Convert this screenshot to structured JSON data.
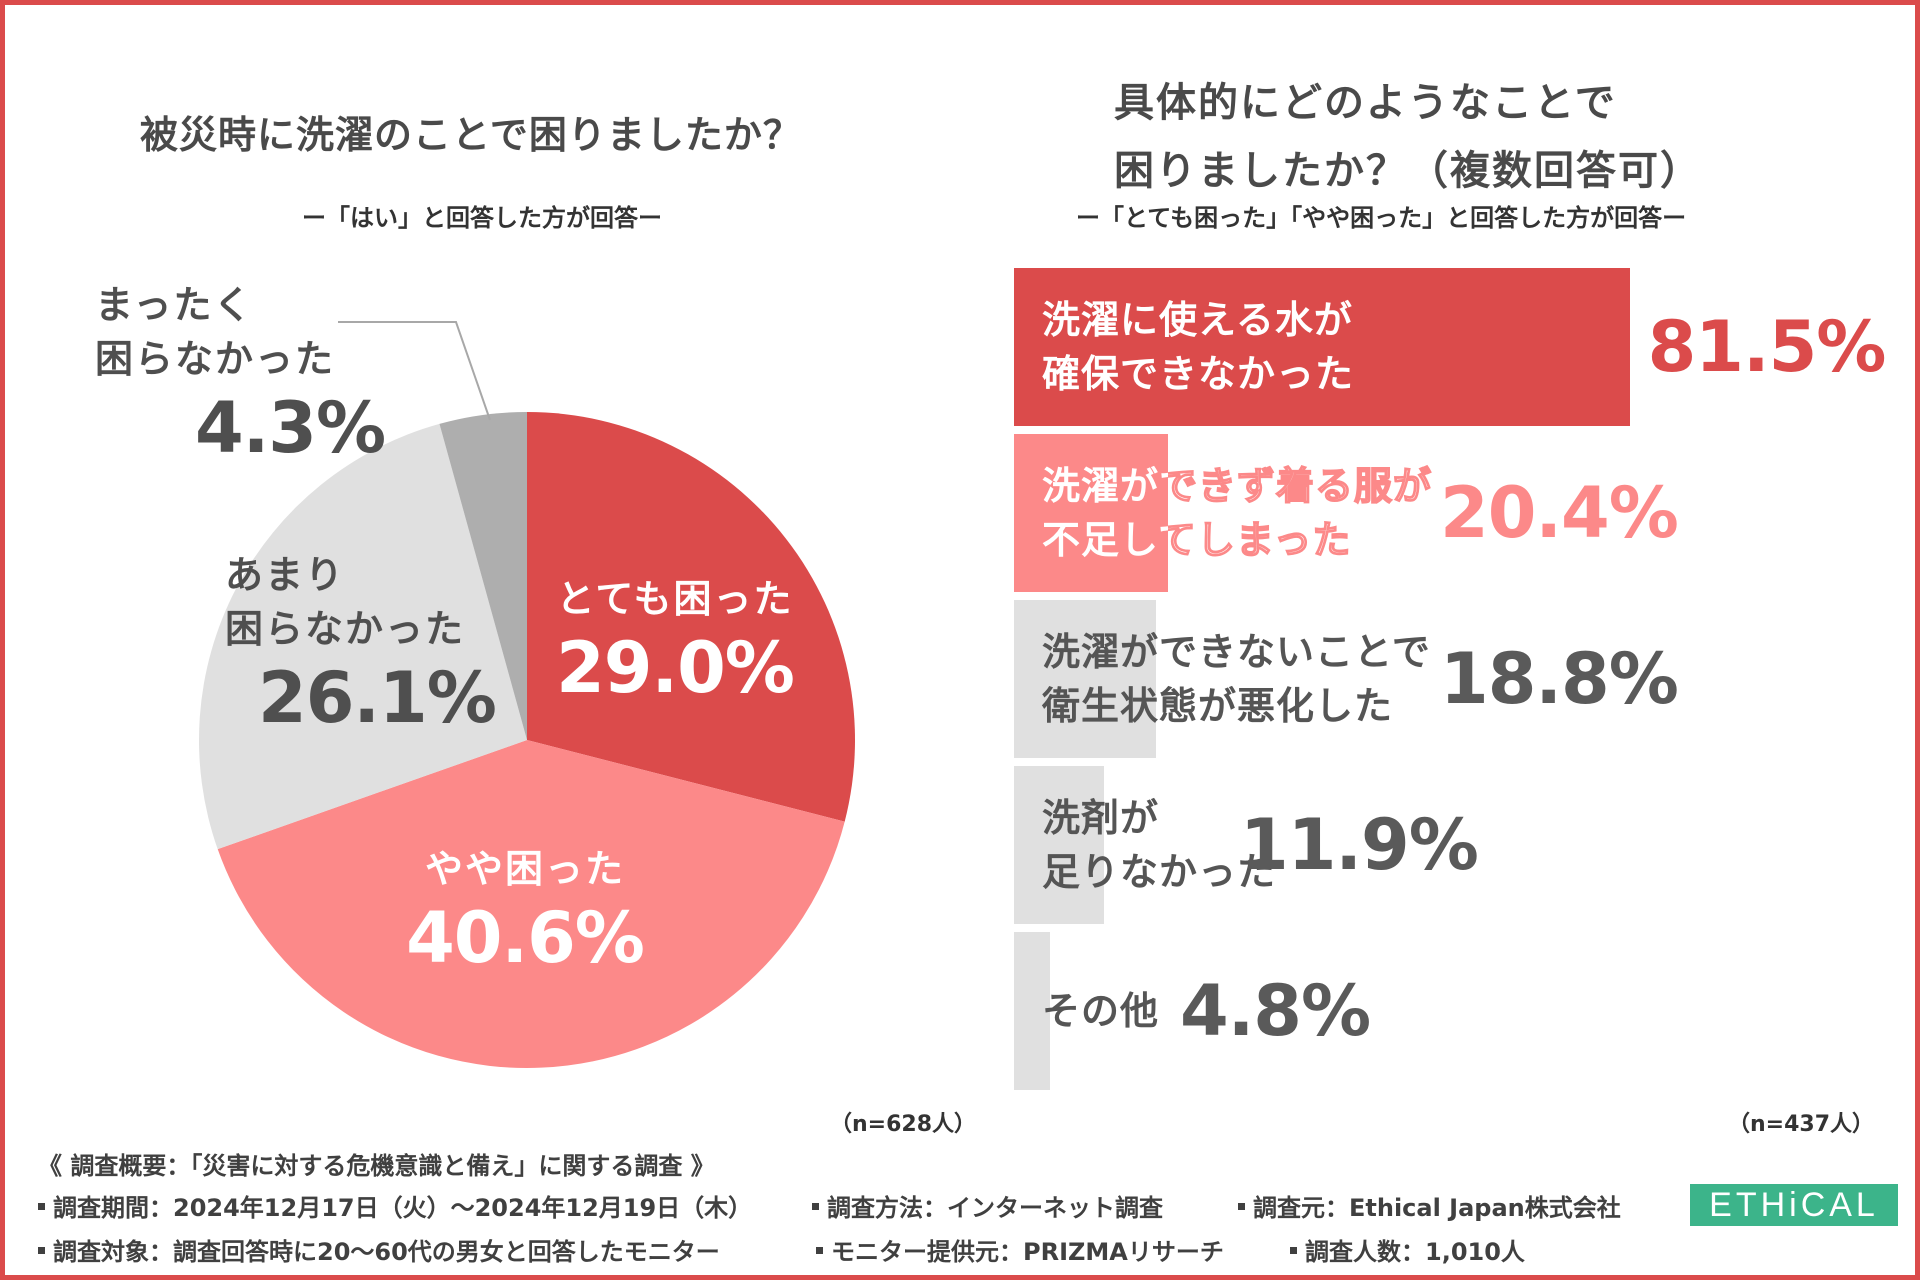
{
  "left": {
    "title": "被災時に洗濯のことで困りましたか？",
    "subtitle": "ー「はい」と回答した方が回答ー",
    "n": "（n=628人）"
  },
  "right": {
    "title_line1": "具体的にどのようなことで",
    "title_line2": "困りましたか？（複数回答可）",
    "subtitle": "ー「とても困った」「やや困った」と回答した方が回答ー",
    "n": "（n=437人）"
  },
  "chart_data": [
    {
      "type": "pie",
      "title": "被災時に洗濯のことで困りましたか？",
      "categories": [
        "とても困った",
        "やや困った",
        "あまり困らなかった",
        "まったく困らなかった"
      ],
      "values": [
        29.0,
        40.6,
        26.1,
        4.3
      ],
      "labels_name": [
        "とても困った",
        "やや困った",
        "あまり\n困らなかった",
        "まったく\n困らなかった"
      ],
      "labels_pct": [
        "29.0%",
        "40.6%",
        "26.1%",
        "4.3%"
      ],
      "colors": [
        "#db4b4b",
        "#fc8989",
        "#e0e0e0",
        "#aeaeae"
      ],
      "label_colors": [
        "#ffffff",
        "#ffffff",
        "#4f4f4f",
        "#4f4f4f"
      ]
    },
    {
      "type": "bar",
      "orientation": "horizontal",
      "title": "具体的にどのようなことで困りましたか？（複数回答可）",
      "categories": [
        "洗濯に使える水が\n確保できなかった",
        "洗濯ができず着る服が\n不足してしまった",
        "洗濯ができないことで\n衛生状態が悪化した",
        "洗剤が\n足りなかった",
        "その他"
      ],
      "values": [
        81.5,
        20.4,
        18.8,
        11.9,
        4.8
      ],
      "value_labels": [
        "81.5%",
        "20.4%",
        "18.8%",
        "11.9%",
        "4.8%"
      ],
      "colors": [
        "#db4b4b",
        "#fc8989",
        "#e0e0e0",
        "#e0e0e0",
        "#e0e0e0"
      ],
      "label_colors": [
        "#ffffff",
        "#ffffff",
        "#555555",
        "#555555",
        "#555555"
      ],
      "value_colors": [
        "#db4b4b",
        "#fc8989",
        "#5a5a5a",
        "#5a5a5a",
        "#5a5a5a"
      ],
      "xlim": [
        0,
        100
      ]
    }
  ],
  "footer": {
    "summary": "《 調査概要：「災害に対する危機意識と備え」に関する調査 》",
    "period": "調査期間：2024年12月17日（火）〜2024年12月19日（木）",
    "method": "調査方法：インターネット調査",
    "source": "調査元：Ethical Japan株式会社",
    "target": "調査対象：調査回答時に20〜60代の男女と回答したモニター",
    "provider": "モニター提供元：PRIZMAリサーチ",
    "count": "調査人数：1,010人"
  },
  "logo": "ETHiCAL",
  "colors": {
    "accent": "#db4b4b",
    "accent_light": "#fc8989",
    "gray": "#e0e0e0",
    "dark_gray": "#aeaeae",
    "logo": "#3cb48a"
  }
}
